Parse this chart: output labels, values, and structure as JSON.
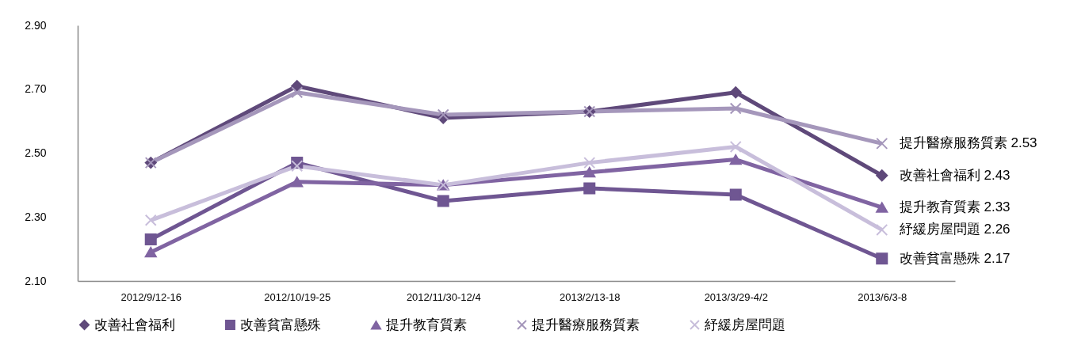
{
  "chart_data": {
    "type": "line",
    "categories": [
      "2012/9/12-16",
      "2012/10/19-25",
      "2012/11/30-12/4",
      "2013/2/13-18",
      "2013/3/29-4/2",
      "2013/6/3-8"
    ],
    "series": [
      {
        "name": "改善社會福利",
        "color": "#5f497a",
        "marker": "diamond",
        "values": [
          2.47,
          2.71,
          2.61,
          2.63,
          2.69,
          2.43
        ]
      },
      {
        "name": "改善貧富懸殊",
        "color": "#6f5692",
        "marker": "square",
        "values": [
          2.23,
          2.47,
          2.35,
          2.39,
          2.37,
          2.17
        ]
      },
      {
        "name": "提升教育質素",
        "color": "#8064a2",
        "marker": "triangle",
        "values": [
          2.19,
          2.41,
          2.4,
          2.44,
          2.48,
          2.33
        ]
      },
      {
        "name": "提升醫療服務質素",
        "color": "#a597bb",
        "marker": "cross",
        "values": [
          2.47,
          2.69,
          2.62,
          2.63,
          2.64,
          2.53
        ]
      },
      {
        "name": "紓緩房屋問題",
        "color": "#c8bedb",
        "marker": "cross",
        "values": [
          2.29,
          2.46,
          2.4,
          2.47,
          2.52,
          2.26
        ]
      }
    ],
    "annotations": [
      {
        "text": "提升醫療服務質素 2.53",
        "x": "2013/6/3-8",
        "y": 2.53
      },
      {
        "text": "改善社會福利 2.43",
        "x": "2013/6/3-8",
        "y": 2.43
      },
      {
        "text": "提升教育質素 2.33",
        "x": "2013/6/3-8",
        "y": 2.33
      },
      {
        "text": "紓緩房屋問題 2.26",
        "x": "2013/6/3-8",
        "y": 2.26
      },
      {
        "text": "改善貧富懸殊 2.17",
        "x": "2013/6/3-8",
        "y": 2.17
      }
    ],
    "ylim": [
      2.1,
      2.9
    ],
    "yticks": [
      {
        "value": 2.1,
        "label": "2.10"
      },
      {
        "value": 2.3,
        "label": "2.30"
      },
      {
        "value": 2.5,
        "label": "2.50"
      },
      {
        "value": 2.7,
        "label": "2.70"
      },
      {
        "value": 2.9,
        "label": "2.90"
      }
    ],
    "grid": false,
    "legend": "bottom"
  }
}
